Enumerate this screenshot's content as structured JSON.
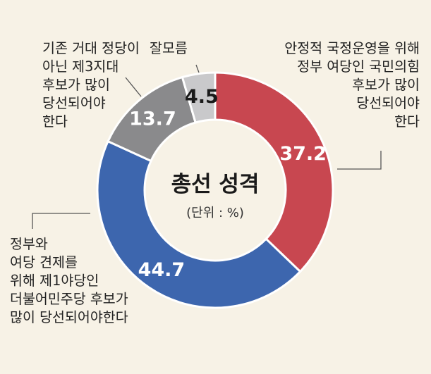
{
  "chart_data": {
    "type": "pie",
    "donut": true,
    "title": "총선 성격",
    "subtitle": "(단위 : %)",
    "slices": [
      {
        "value": 37.2,
        "label": "37.2",
        "color": "#c84750",
        "text_color": "#ffffff",
        "annotation": [
          "안정적 국정운영을 위해",
          "정부 여당인 국민의힘",
          "후보가 많이",
          "당선되어야",
          "한다"
        ]
      },
      {
        "value": 44.7,
        "label": "44.7",
        "color": "#3d66ae",
        "text_color": "#ffffff",
        "annotation": [
          "정부와",
          "여당 견제를",
          "위해 제1야당인",
          "더불어민주당 후보가",
          "많이 당선되어야한다"
        ]
      },
      {
        "value": 13.7,
        "label": "13.7",
        "color": "#8a8a8c",
        "text_color": "#ffffff",
        "annotation": [
          "기존 거대 정당이",
          "아닌 제3지대",
          "후보가 많이",
          "당선되어야",
          "한다"
        ]
      },
      {
        "value": 4.5,
        "label": "4.5",
        "color": "#c9c9cb",
        "text_color": "#1a1a1a",
        "annotation": [
          "잘모름"
        ]
      }
    ]
  }
}
